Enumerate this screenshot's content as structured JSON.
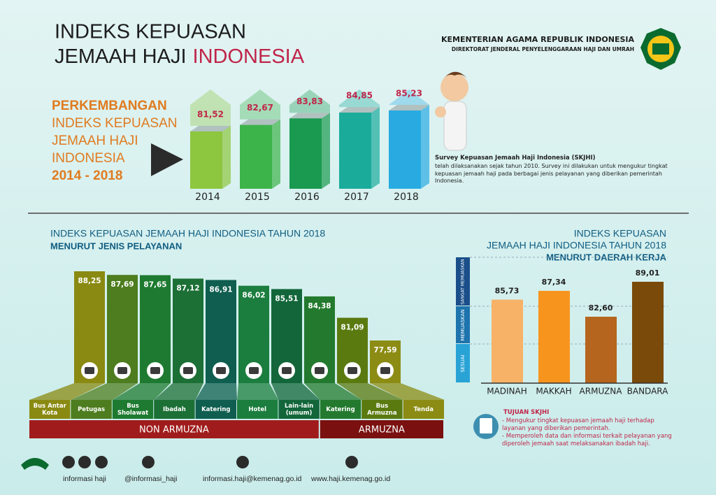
{
  "header": {
    "title_line1": "INDEKS KEPUASAN",
    "title_line2": "JEMAAH HAJI",
    "title_highlight": "INDONESIA",
    "ministry": "KEMENTERIAN AGAMA REPUBLIK INDONESIA",
    "directorate": "DIREKTORAT JENDERAL PENYELENGGARAAN HAJI DAN UMRAH"
  },
  "chart_data": [
    {
      "type": "bar",
      "title_lines": [
        "PERKEMBANGAN",
        "INDEKS KEPUASAN",
        "JEMAAH HAJI",
        "INDONESIA",
        "2014 - 2018"
      ],
      "categories": [
        "2014",
        "2015",
        "2016",
        "2017",
        "2018"
      ],
      "values": [
        81.52,
        82.67,
        83.83,
        84.85,
        85.23
      ],
      "value_labels": [
        "81,52",
        "82,67",
        "83,83",
        "84,85",
        "85,23"
      ],
      "colors": [
        "#8dc63f",
        "#3cb44a",
        "#1a9a50",
        "#1aab9b",
        "#29abe2"
      ]
    },
    {
      "type": "bar",
      "title": "INDEKS KEPUASAN JEMAAH HAJI INDONESIA TAHUN 2018",
      "subtitle": "MENURUT JENIS PELAYANAN",
      "groups": [
        {
          "name": "NON ARMUZNA",
          "categories": [
            "Bus Antar Kota",
            "Petugas",
            "Bus Sholawat",
            "Ibadah",
            "Katering",
            "Hotel",
            "Lain-lain (umum)"
          ],
          "values": [
            88.25,
            87.69,
            87.65,
            87.12,
            86.91,
            86.02,
            85.51
          ],
          "value_labels": [
            "88,25",
            "87,69",
            "87,65",
            "87,12",
            "86,91",
            "86,02",
            "85,51"
          ],
          "colors": [
            "#8a8a12",
            "#4d7d1e",
            "#1e7a30",
            "#1c6f35",
            "#0f5e4f",
            "#1b7d3e",
            "#12663a"
          ]
        },
        {
          "name": "ARMUZNA",
          "categories": [
            "Katering",
            "Bus Armuzna",
            "Tenda"
          ],
          "values": [
            84.38,
            81.09,
            77.59
          ],
          "value_labels": [
            "84,38",
            "81,09",
            "77,59"
          ],
          "colors": [
            "#237a2e",
            "#5a7a10",
            "#8c8c14"
          ]
        }
      ]
    },
    {
      "type": "bar",
      "title_lines": [
        "INDEKS KEPUASAN",
        "JEMAAH HAJI INDONESIA TAHUN 2018"
      ],
      "subtitle": "MENURUT DAERAH KERJA",
      "bands": [
        "SANGAT MEMUASKAN",
        "MEMUASKAN",
        "SESUAI"
      ],
      "categories": [
        "MADINAH",
        "MAKKAH",
        "ARMUZNA",
        "BANDARA"
      ],
      "values": [
        85.73,
        87.34,
        82.6,
        89.01
      ],
      "value_labels": [
        "85,73",
        "87,34",
        "82,60",
        "89,01"
      ],
      "colors": [
        "#f7b267",
        "#f7941d",
        "#b5651d",
        "#7a4a0a"
      ]
    }
  ],
  "survey": {
    "title": "Survey Kepuasan Jemaah Haji Indonesia (SKJHI)",
    "text": "telah dilaksanakan sejak tahun 2010. Survey ini dilakukan untuk mengukur tingkat kepuasan jemaah haji pada berbagai jenis pelayanan yang diberikan pemerintah Indonesia."
  },
  "purpose": {
    "title": "TUJUAN SKJHI",
    "items": [
      "- Mengukur tingkat kepuasan jemaah haji terhadap layanan yang diberikan pemerintah.",
      "- Memperoleh data dan informasi terkait pelayanan yang diperoleh jemaah saat melaksanakan ibadah haji."
    ]
  },
  "footer": [
    "informasi haji",
    "@informasi_haji",
    "informasi.haji@kemenag.go.id",
    "www.haji.kemenag.go.id"
  ]
}
